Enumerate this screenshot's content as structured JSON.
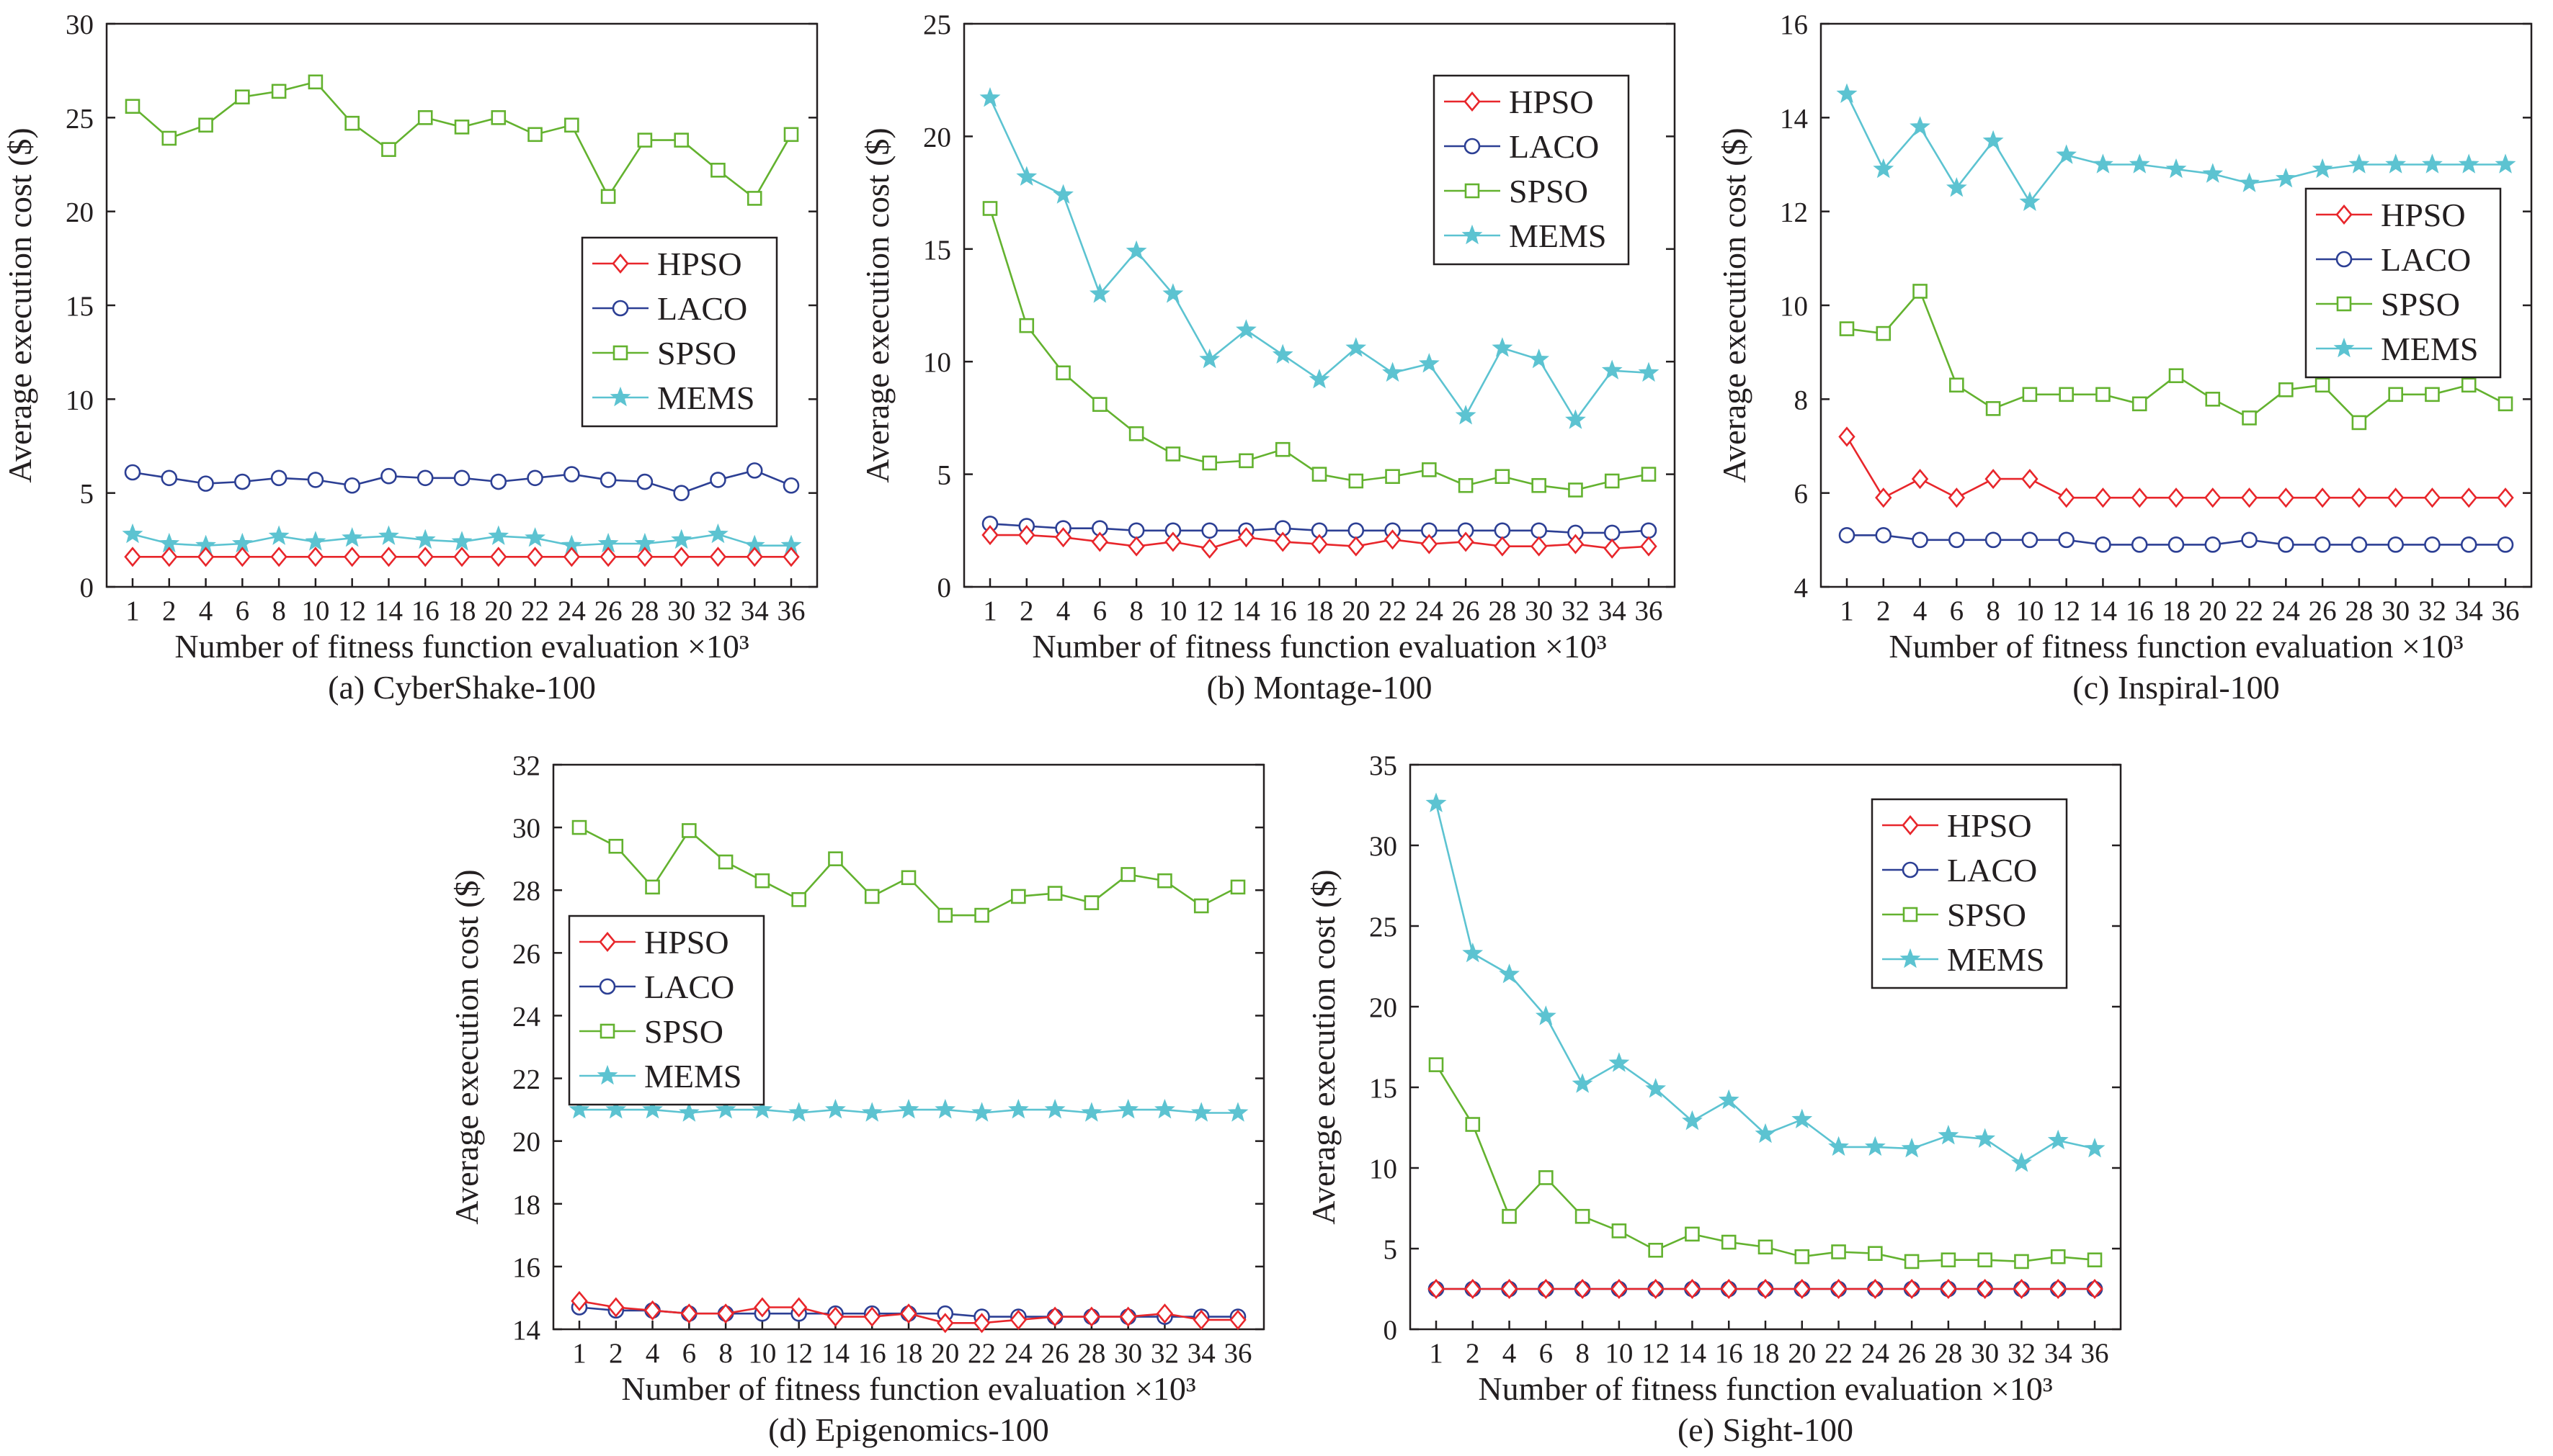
{
  "figure": {
    "x_axis_label": "Number of fitness function evaluation ×10³",
    "y_axis_label": "Average execution cost ($)",
    "colors": {
      "HPSO": "#e8262b",
      "LACO": "#2c3f94",
      "SPSO": "#63b22f",
      "MEMS": "#5cc3d1"
    },
    "markers": {
      "HPSO": "diamond",
      "LACO": "circle",
      "SPSO": "square",
      "MEMS": "star"
    }
  },
  "chart_data": [
    {
      "type": "line",
      "caption": "(a) CyberShake-100",
      "xlabel": "Number of fitness function evaluation ×10³",
      "ylabel": "Average execution cost ($)",
      "categories": [
        "1",
        "2",
        "4",
        "6",
        "8",
        "10",
        "12",
        "14",
        "16",
        "18",
        "20",
        "22",
        "24",
        "26",
        "28",
        "30",
        "32",
        "34",
        "36"
      ],
      "ylim": [
        0,
        30
      ],
      "yticks": [
        0,
        5,
        10,
        15,
        20,
        25,
        30
      ],
      "legend": "center-right",
      "series": [
        {
          "name": "HPSO",
          "values": [
            1.6,
            1.6,
            1.6,
            1.6,
            1.6,
            1.6,
            1.6,
            1.6,
            1.6,
            1.6,
            1.6,
            1.6,
            1.6,
            1.6,
            1.6,
            1.6,
            1.6,
            1.6,
            1.6
          ]
        },
        {
          "name": "LACO",
          "values": [
            6.1,
            5.8,
            5.5,
            5.6,
            5.8,
            5.7,
            5.4,
            5.9,
            5.8,
            5.8,
            5.6,
            5.8,
            6.0,
            5.7,
            5.6,
            5.0,
            5.7,
            6.2,
            5.4
          ]
        },
        {
          "name": "SPSO",
          "values": [
            25.6,
            23.9,
            24.6,
            26.1,
            26.4,
            26.9,
            24.7,
            23.3,
            25.0,
            24.5,
            25.0,
            24.1,
            24.6,
            20.8,
            23.8,
            23.8,
            22.2,
            20.7,
            24.1
          ]
        },
        {
          "name": "MEMS",
          "values": [
            2.8,
            2.3,
            2.2,
            2.3,
            2.7,
            2.4,
            2.6,
            2.7,
            2.5,
            2.4,
            2.7,
            2.6,
            2.2,
            2.3,
            2.3,
            2.5,
            2.8,
            2.2,
            2.2
          ]
        }
      ]
    },
    {
      "type": "line",
      "caption": "(b) Montage-100",
      "xlabel": "Number of fitness function evaluation ×10³",
      "ylabel": "Average execution cost ($)",
      "categories": [
        "1",
        "2",
        "4",
        "6",
        "8",
        "10",
        "12",
        "14",
        "16",
        "18",
        "20",
        "22",
        "24",
        "26",
        "28",
        "30",
        "32",
        "34",
        "36"
      ],
      "ylim": [
        0,
        25
      ],
      "yticks": [
        0,
        5,
        10,
        15,
        20,
        25
      ],
      "legend": "top-right",
      "series": [
        {
          "name": "HPSO",
          "values": [
            2.3,
            2.3,
            2.2,
            2.0,
            1.8,
            2.0,
            1.7,
            2.2,
            2.0,
            1.9,
            1.8,
            2.1,
            1.9,
            2.0,
            1.8,
            1.8,
            1.9,
            1.7,
            1.8
          ]
        },
        {
          "name": "LACO",
          "values": [
            2.8,
            2.7,
            2.6,
            2.6,
            2.5,
            2.5,
            2.5,
            2.5,
            2.6,
            2.5,
            2.5,
            2.5,
            2.5,
            2.5,
            2.5,
            2.5,
            2.4,
            2.4,
            2.5
          ]
        },
        {
          "name": "SPSO",
          "values": [
            16.8,
            11.6,
            9.5,
            8.1,
            6.8,
            5.9,
            5.5,
            5.6,
            6.1,
            5.0,
            4.7,
            4.9,
            5.2,
            4.5,
            4.9,
            4.5,
            4.3,
            4.7,
            5.0
          ]
        },
        {
          "name": "MEMS",
          "values": [
            21.7,
            18.2,
            17.4,
            13.0,
            14.9,
            13.0,
            10.1,
            11.4,
            10.3,
            9.2,
            10.6,
            9.5,
            9.9,
            7.6,
            10.6,
            10.1,
            7.4,
            9.6,
            9.5
          ]
        }
      ]
    },
    {
      "type": "line",
      "caption": "(c) Inspiral-100",
      "xlabel": "Number of fitness function evaluation ×10³",
      "ylabel": "Average execution cost ($)",
      "categories": [
        "1",
        "2",
        "4",
        "6",
        "8",
        "10",
        "12",
        "14",
        "16",
        "18",
        "20",
        "22",
        "24",
        "26",
        "28",
        "30",
        "32",
        "34",
        "36"
      ],
      "ylim": [
        4,
        16
      ],
      "yticks": [
        4,
        6,
        8,
        10,
        12,
        14,
        16
      ],
      "legend": "top-right",
      "series": [
        {
          "name": "HPSO",
          "values": [
            7.2,
            5.9,
            6.3,
            5.9,
            6.3,
            6.3,
            5.9,
            5.9,
            5.9,
            5.9,
            5.9,
            5.9,
            5.9,
            5.9,
            5.9,
            5.9,
            5.9,
            5.9,
            5.9
          ]
        },
        {
          "name": "LACO",
          "values": [
            5.1,
            5.1,
            5.0,
            5.0,
            5.0,
            5.0,
            5.0,
            4.9,
            4.9,
            4.9,
            4.9,
            5.0,
            4.9,
            4.9,
            4.9,
            4.9,
            4.9,
            4.9,
            4.9
          ]
        },
        {
          "name": "SPSO",
          "values": [
            9.5,
            9.4,
            10.3,
            8.3,
            7.8,
            8.1,
            8.1,
            8.1,
            7.9,
            8.5,
            8.0,
            7.6,
            8.2,
            8.3,
            7.5,
            8.1,
            8.1,
            8.3,
            7.9
          ]
        },
        {
          "name": "MEMS",
          "values": [
            14.5,
            12.9,
            13.8,
            12.5,
            13.5,
            12.2,
            13.2,
            13.0,
            13.0,
            12.9,
            12.8,
            12.6,
            12.7,
            12.9,
            13.0,
            13.0,
            13.0,
            13.0,
            13.0
          ]
        }
      ]
    },
    {
      "type": "line",
      "caption": "(d) Epigenomics-100",
      "xlabel": "Number of fitness function evaluation ×10³",
      "ylabel": "Average execution cost ($)",
      "categories": [
        "1",
        "2",
        "4",
        "6",
        "8",
        "10",
        "12",
        "14",
        "16",
        "18",
        "20",
        "22",
        "24",
        "26",
        "28",
        "30",
        "32",
        "34",
        "36"
      ],
      "ylim": [
        14,
        32
      ],
      "yticks": [
        14,
        16,
        18,
        20,
        22,
        24,
        26,
        28,
        30,
        32
      ],
      "legend": "center-left",
      "series": [
        {
          "name": "HPSO",
          "values": [
            14.9,
            14.7,
            14.6,
            14.5,
            14.5,
            14.7,
            14.7,
            14.4,
            14.4,
            14.5,
            14.2,
            14.2,
            14.3,
            14.4,
            14.4,
            14.4,
            14.5,
            14.3,
            14.3
          ]
        },
        {
          "name": "LACO",
          "values": [
            14.7,
            14.6,
            14.6,
            14.5,
            14.5,
            14.5,
            14.5,
            14.5,
            14.5,
            14.5,
            14.5,
            14.4,
            14.4,
            14.4,
            14.4,
            14.4,
            14.4,
            14.4,
            14.4
          ]
        },
        {
          "name": "SPSO",
          "values": [
            30.0,
            29.4,
            28.1,
            29.9,
            28.9,
            28.3,
            27.7,
            29.0,
            27.8,
            28.4,
            27.2,
            27.2,
            27.8,
            27.9,
            27.6,
            28.5,
            28.3,
            27.5,
            28.1
          ]
        },
        {
          "name": "MEMS",
          "values": [
            21.0,
            21.0,
            21.0,
            20.9,
            21.0,
            21.0,
            20.9,
            21.0,
            20.9,
            21.0,
            21.0,
            20.9,
            21.0,
            21.0,
            20.9,
            21.0,
            21.0,
            20.9,
            20.9
          ]
        }
      ]
    },
    {
      "type": "line",
      "caption": "(e) Sight-100",
      "xlabel": "Number of fitness function evaluation ×10³",
      "ylabel": "Average execution cost ($)",
      "categories": [
        "1",
        "2",
        "4",
        "6",
        "8",
        "10",
        "12",
        "14",
        "16",
        "18",
        "20",
        "22",
        "24",
        "26",
        "28",
        "30",
        "32",
        "34",
        "36"
      ],
      "ylim": [
        0,
        35
      ],
      "yticks": [
        0,
        5,
        10,
        15,
        20,
        25,
        30,
        35
      ],
      "legend": "top-right",
      "series": [
        {
          "name": "HPSO",
          "values": [
            2.5,
            2.5,
            2.5,
            2.5,
            2.5,
            2.5,
            2.5,
            2.5,
            2.5,
            2.5,
            2.5,
            2.5,
            2.5,
            2.5,
            2.5,
            2.5,
            2.5,
            2.5,
            2.5
          ]
        },
        {
          "name": "LACO",
          "values": [
            2.5,
            2.5,
            2.5,
            2.5,
            2.5,
            2.5,
            2.5,
            2.5,
            2.5,
            2.5,
            2.5,
            2.5,
            2.5,
            2.5,
            2.5,
            2.5,
            2.5,
            2.5,
            2.5
          ]
        },
        {
          "name": "SPSO",
          "values": [
            16.4,
            12.7,
            7.0,
            9.4,
            7.0,
            6.1,
            4.9,
            5.9,
            5.4,
            5.1,
            4.5,
            4.8,
            4.7,
            4.2,
            4.3,
            4.3,
            4.2,
            4.5,
            4.3
          ]
        },
        {
          "name": "MEMS",
          "values": [
            32.6,
            23.3,
            22.0,
            19.4,
            15.2,
            16.5,
            14.9,
            12.9,
            14.2,
            12.1,
            13.0,
            11.3,
            11.3,
            11.2,
            12.0,
            11.8,
            10.3,
            11.7,
            11.2
          ]
        }
      ]
    }
  ]
}
